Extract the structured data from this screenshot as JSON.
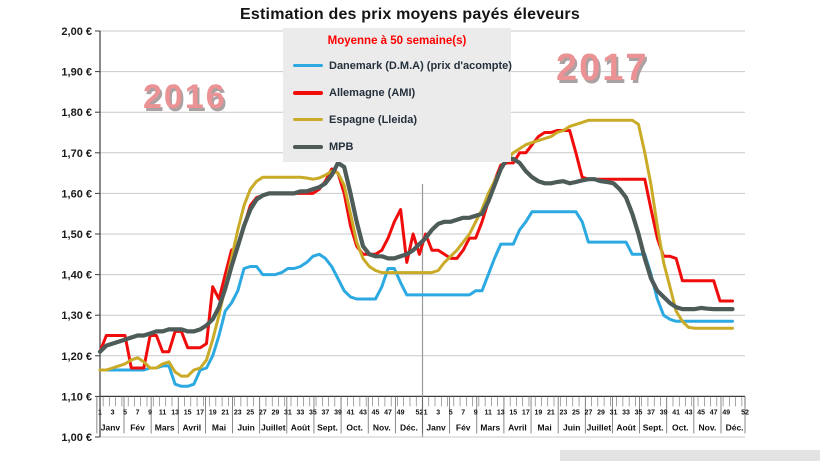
{
  "title": "Estimation des prix moyens payés éleveurs",
  "legend": {
    "note": "Moyenne à  50 semaine(s)",
    "items": [
      {
        "key": "danemark",
        "label": "Danemark (D.M.A) (prix d'acompte)",
        "color": "#2da9e1"
      },
      {
        "key": "allemagne",
        "label": "Allemagne (AMI)",
        "color": "#f10c0c"
      },
      {
        "key": "espagne",
        "label": "Espagne (Lleida)",
        "color": "#c9ab28"
      },
      {
        "key": "mpb",
        "label": "MPB",
        "color": "#4d5b59"
      }
    ]
  },
  "y_axis": {
    "labels": [
      "2,00 €",
      "1,90 €",
      "1,80 €",
      "1,70 €",
      "1,60 €",
      "1,50 €",
      "1,40 €",
      "1,30 €",
      "1,20 €",
      "1,10 €",
      "1,00 €"
    ]
  },
  "x_axis": {
    "week_labels": [
      "1",
      "3",
      "5",
      "7",
      "9",
      "11",
      "13",
      "15",
      "17",
      "19",
      "21",
      "23",
      "25",
      "27",
      "29",
      "31",
      "33",
      "35",
      "37",
      "39",
      "41",
      "43",
      "45",
      "47",
      "49",
      "52"
    ],
    "months": [
      "Janv",
      "Fév",
      "Mars",
      "Avril",
      "Mai",
      "Juin",
      "Juillet",
      "Août",
      "Sept.",
      "Oct.",
      "Nov.",
      "Déc."
    ],
    "year_labels": [
      "2016",
      "2017"
    ]
  },
  "colors": {
    "grid": "#c9c9c9",
    "axis": "#3c3c3c",
    "separator": "#9a9a9a",
    "legend_bg": "#ebebeb",
    "legend_note": "#ff0000",
    "year_label": "#eb9295"
  },
  "chart_data": {
    "type": "line",
    "title": "Estimation des prix moyens payés éleveurs",
    "xlabel": "",
    "ylabel": "",
    "ylim": [
      1.0,
      2.0
    ],
    "ytick_step": 0.1,
    "grid": true,
    "legend_position": "top-center",
    "years": [
      2016,
      2017
    ],
    "weeks_per_year": 52,
    "x_unit": "semaine (2016 s1 → 2017 s52, données jusqu'à s50 2017)",
    "series": [
      {
        "key": "danemark",
        "name": "Danemark (D.M.A) (prix d'acompte)",
        "color": "#2da9e1",
        "values": [
          1.165,
          1.165,
          1.165,
          1.165,
          1.165,
          1.165,
          1.165,
          1.165,
          1.17,
          1.17,
          1.175,
          1.175,
          1.13,
          1.125,
          1.125,
          1.13,
          1.165,
          1.17,
          1.2,
          1.25,
          1.31,
          1.33,
          1.36,
          1.415,
          1.42,
          1.42,
          1.4,
          1.4,
          1.4,
          1.405,
          1.415,
          1.415,
          1.42,
          1.43,
          1.445,
          1.45,
          1.44,
          1.42,
          1.39,
          1.36,
          1.345,
          1.34,
          1.34,
          1.34,
          1.34,
          1.37,
          1.415,
          1.415,
          1.38,
          1.35,
          1.35,
          1.35,
          1.35,
          1.35,
          1.35,
          1.35,
          1.35,
          1.35,
          1.35,
          1.35,
          1.36,
          1.36,
          1.4,
          1.44,
          1.475,
          1.475,
          1.475,
          1.51,
          1.53,
          1.555,
          1.555,
          1.555,
          1.555,
          1.555,
          1.555,
          1.555,
          1.555,
          1.53,
          1.48,
          1.48,
          1.48,
          1.48,
          1.48,
          1.48,
          1.48,
          1.45,
          1.45,
          1.45,
          1.4,
          1.34,
          1.3,
          1.29,
          1.285,
          1.285,
          1.285,
          1.285,
          1.285,
          1.285,
          1.285,
          1.285,
          1.285,
          1.285,
          null,
          null
        ]
      },
      {
        "key": "allemagne",
        "name": "Allemagne (AMI)",
        "color": "#f10c0c",
        "values": [
          1.21,
          1.25,
          1.25,
          1.25,
          1.25,
          1.17,
          1.17,
          1.17,
          1.25,
          1.25,
          1.21,
          1.21,
          1.26,
          1.26,
          1.22,
          1.22,
          1.22,
          1.23,
          1.37,
          1.34,
          1.4,
          1.46,
          1.47,
          1.52,
          1.57,
          1.59,
          1.595,
          1.6,
          1.6,
          1.6,
          1.6,
          1.6,
          1.6,
          1.6,
          1.6,
          1.61,
          1.63,
          1.66,
          1.65,
          1.6,
          1.52,
          1.47,
          1.45,
          1.45,
          1.45,
          1.46,
          1.49,
          1.53,
          1.56,
          1.43,
          1.5,
          1.45,
          1.5,
          1.46,
          1.46,
          1.45,
          1.44,
          1.44,
          1.46,
          1.49,
          1.49,
          1.53,
          1.58,
          1.63,
          1.67,
          1.675,
          1.675,
          1.7,
          1.7,
          1.72,
          1.74,
          1.75,
          1.75,
          1.755,
          1.755,
          1.755,
          1.7,
          1.64,
          1.635,
          1.635,
          1.635,
          1.635,
          1.635,
          1.635,
          1.635,
          1.635,
          1.635,
          1.635,
          1.56,
          1.49,
          1.445,
          1.445,
          1.44,
          1.385,
          1.385,
          1.385,
          1.385,
          1.385,
          1.385,
          1.335,
          1.335,
          1.335,
          null,
          null
        ]
      },
      {
        "key": "espagne",
        "name": "Espagne (Lleida)",
        "color": "#c9ab28",
        "values": [
          1.165,
          1.165,
          1.17,
          1.175,
          1.18,
          1.19,
          1.195,
          1.185,
          1.17,
          1.17,
          1.18,
          1.185,
          1.16,
          1.15,
          1.15,
          1.165,
          1.17,
          1.19,
          1.24,
          1.3,
          1.37,
          1.44,
          1.51,
          1.57,
          1.61,
          1.63,
          1.64,
          1.64,
          1.64,
          1.64,
          1.64,
          1.64,
          1.64,
          1.638,
          1.635,
          1.638,
          1.645,
          1.655,
          1.65,
          1.62,
          1.55,
          1.48,
          1.44,
          1.42,
          1.41,
          1.405,
          1.405,
          1.405,
          1.405,
          1.405,
          1.405,
          1.405,
          1.405,
          1.405,
          1.41,
          1.43,
          1.445,
          1.46,
          1.48,
          1.5,
          1.53,
          1.56,
          1.6,
          1.63,
          1.66,
          1.685,
          1.7,
          1.71,
          1.72,
          1.725,
          1.73,
          1.735,
          1.74,
          1.75,
          1.755,
          1.765,
          1.77,
          1.775,
          1.78,
          1.78,
          1.78,
          1.78,
          1.78,
          1.78,
          1.78,
          1.78,
          1.77,
          1.7,
          1.62,
          1.52,
          1.43,
          1.37,
          1.31,
          1.285,
          1.27,
          1.268,
          1.268,
          1.268,
          1.268,
          1.268,
          1.268,
          1.268,
          null,
          null
        ]
      },
      {
        "key": "mpb",
        "name": "MPB",
        "color": "#4d5b59",
        "values": [
          1.21,
          1.225,
          1.23,
          1.235,
          1.24,
          1.245,
          1.25,
          1.25,
          1.255,
          1.26,
          1.26,
          1.265,
          1.265,
          1.265,
          1.26,
          1.26,
          1.265,
          1.275,
          1.29,
          1.32,
          1.365,
          1.42,
          1.47,
          1.52,
          1.56,
          1.585,
          1.595,
          1.6,
          1.6,
          1.6,
          1.6,
          1.6,
          1.605,
          1.605,
          1.61,
          1.615,
          1.625,
          1.645,
          1.675,
          1.665,
          1.6,
          1.53,
          1.47,
          1.45,
          1.445,
          1.445,
          1.44,
          1.44,
          1.445,
          1.45,
          1.46,
          1.475,
          1.49,
          1.51,
          1.525,
          1.53,
          1.53,
          1.535,
          1.54,
          1.54,
          1.545,
          1.55,
          1.58,
          1.62,
          1.66,
          1.685,
          1.685,
          1.675,
          1.655,
          1.64,
          1.63,
          1.625,
          1.625,
          1.628,
          1.63,
          1.625,
          1.628,
          1.632,
          1.635,
          1.635,
          1.63,
          1.628,
          1.625,
          1.61,
          1.59,
          1.55,
          1.5,
          1.44,
          1.39,
          1.36,
          1.345,
          1.33,
          1.32,
          1.315,
          1.315,
          1.315,
          1.318,
          1.316,
          1.315,
          1.315,
          1.315,
          1.315,
          null,
          null
        ]
      }
    ]
  }
}
